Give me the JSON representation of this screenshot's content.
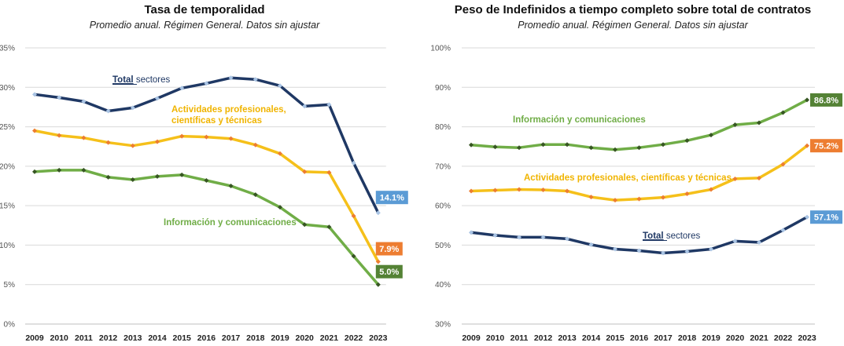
{
  "chart_data": [
    {
      "type": "line",
      "title": "Tasa de temporalidad",
      "subtitle": "Promedio anual. Régimen General. Datos sin ajustar",
      "x": [
        "2009",
        "2010",
        "2011",
        "2012",
        "2013",
        "2014",
        "2015",
        "2016",
        "2017",
        "2018",
        "2019",
        "2020",
        "2021",
        "2022",
        "2023"
      ],
      "yticks": [
        "0%",
        "5%",
        "10%",
        "15%",
        "20%",
        "25%",
        "30%",
        "35%"
      ],
      "ylim": [
        0,
        35
      ],
      "grid": true,
      "series": [
        {
          "name": "Total sectores",
          "name_underlined": "Total",
          "name_rest": " sectores",
          "color": "#1f3864",
          "marker": "#a9c4e4",
          "values": [
            29.1,
            28.7,
            28.2,
            27.0,
            27.4,
            28.6,
            29.9,
            30.5,
            31.2,
            31.0,
            30.2,
            27.6,
            27.8,
            20.4,
            14.1
          ],
          "end_label": "14.1%",
          "end_color": "#5b9bd5"
        },
        {
          "name": "Actividades profesionales, científicas y técnicas",
          "name_line1": "Actividades profesionales,",
          "name_line2": "científicas y técnicas",
          "color": "#f5c01a",
          "marker": "#ed7d31",
          "values": [
            24.5,
            23.9,
            23.6,
            23.0,
            22.6,
            23.1,
            23.8,
            23.7,
            23.5,
            22.7,
            21.6,
            19.3,
            19.2,
            13.7,
            7.9
          ],
          "end_label": "7.9%",
          "end_color": "#ed7d31"
        },
        {
          "name": "Información y comunicaciones",
          "color": "#70ad47",
          "marker": "#375623",
          "values": [
            19.3,
            19.5,
            19.5,
            18.6,
            18.3,
            18.7,
            18.9,
            18.2,
            17.5,
            16.4,
            14.8,
            12.6,
            12.3,
            8.6,
            5.0
          ],
          "end_label": "5.0%",
          "end_color": "#548235"
        }
      ]
    },
    {
      "type": "line",
      "title": "Peso de Indefinidos a tiempo completo sobre total de contratos",
      "subtitle": "Promedio anual. Régimen General. Datos sin ajustar",
      "x": [
        "2009",
        "2010",
        "2011",
        "2012",
        "2013",
        "2014",
        "2015",
        "2016",
        "2017",
        "2018",
        "2019",
        "2020",
        "2021",
        "2022",
        "2023"
      ],
      "yticks": [
        "30%",
        "40%",
        "50%",
        "60%",
        "70%",
        "80%",
        "90%",
        "100%"
      ],
      "ylim": [
        30,
        100
      ],
      "grid": true,
      "series": [
        {
          "name": "Información y comunicaciones",
          "color": "#70ad47",
          "marker": "#375623",
          "values": [
            75.4,
            74.9,
            74.7,
            75.5,
            75.5,
            74.7,
            74.2,
            74.7,
            75.5,
            76.5,
            77.9,
            80.5,
            81.0,
            83.6,
            86.8
          ],
          "end_label": "86.8%",
          "end_color": "#548235"
        },
        {
          "name": "Actividades profesionales, científicas y técnicas",
          "color": "#f5c01a",
          "marker": "#ed7d31",
          "values": [
            63.7,
            63.9,
            64.1,
            64.0,
            63.7,
            62.2,
            61.4,
            61.7,
            62.1,
            63.0,
            64.1,
            66.8,
            67.0,
            70.5,
            75.2
          ],
          "end_label": "75.2%",
          "end_color": "#ed7d31"
        },
        {
          "name": "Total sectores",
          "name_underlined": "Total",
          "name_rest": " sectores",
          "color": "#1f3864",
          "marker": "#a9c4e4",
          "values": [
            53.2,
            52.5,
            52.0,
            52.0,
            51.6,
            50.1,
            49.0,
            48.6,
            48.0,
            48.4,
            49.0,
            51.0,
            50.7,
            53.8,
            57.1
          ],
          "end_label": "57.1%",
          "end_color": "#5b9bd5"
        }
      ]
    }
  ]
}
